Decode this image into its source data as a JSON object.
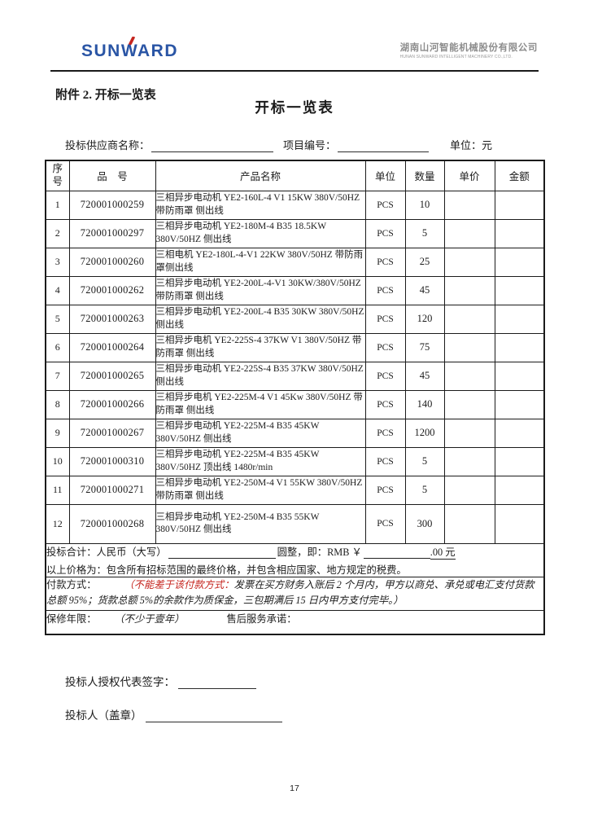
{
  "header": {
    "logo": "SUNWARD",
    "company_cn": "湖南山河智能机械股份有限公司",
    "company_en": "HUNAN SUNWARD INTELLIGENT MACHINERY CO.,LTD."
  },
  "attachment_label": "附件 2.  开标一览表",
  "doc_title": "开标一览表",
  "meta_row": {
    "supplier_label": "投标供应商名称：",
    "project_label": "项目编号：",
    "unit_label": "单位：元"
  },
  "table": {
    "headers": [
      "序号",
      "品　号",
      "产品名称",
      "单位",
      "数量",
      "单价",
      "金额"
    ],
    "rows": [
      {
        "no": "1",
        "item": "720001000259",
        "name": "三相异步电动机 YE2-160L-4 V1 15KW 380V/50HZ  带防雨罩 侧出线",
        "unit": "PCS",
        "qty": "10",
        "price": "",
        "amount": ""
      },
      {
        "no": "2",
        "item": "720001000297",
        "name": "三相异步电动机 YE2-180M-4 B35 18.5KW 380V/50HZ 侧出线",
        "unit": "PCS",
        "qty": "5",
        "price": "",
        "amount": ""
      },
      {
        "no": "3",
        "item": "720001000260",
        "name": "三相电机 YE2-180L-4-V1 22KW 380V/50HZ 带防雨罩侧出线",
        "unit": "PCS",
        "qty": "25",
        "price": "",
        "amount": ""
      },
      {
        "no": "4",
        "item": "720001000262",
        "name": "三相异步电动机 YE2-200L-4-V1 30KW/380V/50HZ 带防雨罩 侧出线",
        "unit": "PCS",
        "qty": "45",
        "price": "",
        "amount": ""
      },
      {
        "no": "5",
        "item": "720001000263",
        "name": "三相异步电动机 YE2-200L-4 B35 30KW 380V/50HZ 侧出线",
        "unit": "PCS",
        "qty": "120",
        "price": "",
        "amount": ""
      },
      {
        "no": "6",
        "item": "720001000264",
        "name": "三相异步电机 YE2-225S-4 37KW V1 380V/50HZ 带防雨罩 侧出线",
        "unit": "PCS",
        "qty": "75",
        "price": "",
        "amount": ""
      },
      {
        "no": "7",
        "item": "720001000265",
        "name": "三相异步电动机 YE2-225S-4 B35 37KW 380V/50HZ 侧出线",
        "unit": "PCS",
        "qty": "45",
        "price": "",
        "amount": ""
      },
      {
        "no": "8",
        "item": "720001000266",
        "name": "三相异步电机 YE2-225M-4 V1 45Kw 380V/50HZ 带防雨罩 侧出线",
        "unit": "PCS",
        "qty": "140",
        "price": "",
        "amount": ""
      },
      {
        "no": "9",
        "item": "720001000267",
        "name": "三相异步电动机 YE2-225M-4 B35 45KW 380V/50HZ 侧出线",
        "unit": "PCS",
        "qty": "1200",
        "price": "",
        "amount": ""
      },
      {
        "no": "10",
        "item": "720001000310",
        "name": "三相异步电动机 YE2-225M-4 B35 45KW 380V/50HZ 顶出线 1480r/min",
        "unit": "PCS",
        "qty": "5",
        "price": "",
        "amount": ""
      },
      {
        "no": "11",
        "item": "720001000271",
        "name": "三相异步电动机 YE2-250M-4 V1 55KW 380V/50HZ 带防雨罩 侧出线",
        "unit": "PCS",
        "qty": "5",
        "price": "",
        "amount": ""
      },
      {
        "no": "12",
        "item": "720001000268",
        "name": "三相异步电动机 YE2-250M-4 B35 55KW 380V/50HZ 侧出线",
        "unit": "PCS",
        "qty": "300",
        "price": "",
        "amount": ""
      }
    ]
  },
  "totals": {
    "prefix": "投标合计：人民币（大写）",
    "mid": "圆整，即：RMB  ￥",
    "suffix": ".00 元",
    "note": "以上价格为：包含所有招标范围的最终价格，并包含相应国家、地方规定的税费。"
  },
  "payment": {
    "label": "付款方式：",
    "red": "（不能差于该付款方式：",
    "terms": "发票在买方财务入账后 2 个月内，甲方以商兑、承兑或电汇支付货款总额 95%；货款总额 5%的余款作为质保金，三包期满后 15 日内甲方支付完毕。）"
  },
  "warranty": {
    "label": "保修年限：",
    "value": "（不少于壹年）",
    "service_label": "售后服务承诺："
  },
  "signature": {
    "rep_label": "投标人授权代表签字：",
    "seal_label": "投标人（盖章）"
  },
  "page_number": "17",
  "colors": {
    "logo_blue": "#2a55a5",
    "accent_red": "#c5251f",
    "company_gray": "#8d8d8d",
    "ink": "#1b1b1b"
  }
}
